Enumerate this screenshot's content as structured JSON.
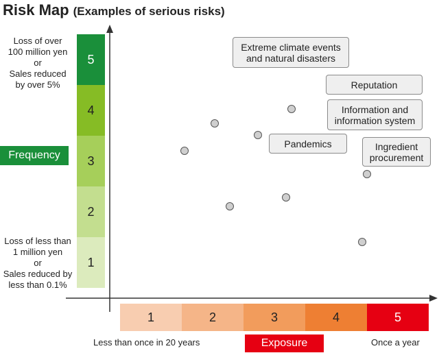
{
  "title": {
    "main": "Risk Map",
    "sub": "(Examples of serious risks)"
  },
  "frequency": {
    "label": "Frequency",
    "top_description": [
      "Loss of over",
      "100 million yen",
      "or",
      "Sales reduced",
      "by over 5%"
    ],
    "bottom_description": [
      "Loss of less than",
      "1 million yen",
      "or",
      "Sales reduced by",
      "less than 0.1%"
    ],
    "levels": [
      {
        "label": "5",
        "color": "#1a8f3a",
        "text_color": "#ffffff"
      },
      {
        "label": "4",
        "color": "#86bc25",
        "text_color": "#222222"
      },
      {
        "label": "3",
        "color": "#a6cf5a",
        "text_color": "#222222"
      },
      {
        "label": "2",
        "color": "#c3de8f",
        "text_color": "#222222"
      },
      {
        "label": "1",
        "color": "#dcebbd",
        "text_color": "#222222"
      }
    ]
  },
  "exposure": {
    "label": "Exposure",
    "low_end": "Less than once in 20 years",
    "high_end": "Once a year",
    "levels": [
      {
        "label": "1",
        "color": "#f8cdb0",
        "text_color": "#222222"
      },
      {
        "label": "2",
        "color": "#f5b588",
        "text_color": "#222222"
      },
      {
        "label": "3",
        "color": "#f29c5c",
        "text_color": "#222222"
      },
      {
        "label": "4",
        "color": "#ee7f33",
        "text_color": "#222222"
      },
      {
        "label": "5",
        "color": "#e60012",
        "text_color": "#ffffff"
      }
    ]
  },
  "risks": [
    {
      "id": "extreme-climate",
      "lines": [
        "Extreme climate events",
        "and natural disasters"
      ]
    },
    {
      "id": "reputation",
      "lines": [
        "Reputation"
      ]
    },
    {
      "id": "information-system",
      "lines": [
        "Information and",
        "information system"
      ]
    },
    {
      "id": "pandemics",
      "lines": [
        "Pandemics"
      ]
    },
    {
      "id": "ingredient-procurement",
      "lines": [
        "Ingredient",
        "procurement"
      ]
    }
  ],
  "colors": {
    "axis": "#333333",
    "dot_fill": "#cfcfcf",
    "box_fill": "#efefef"
  }
}
